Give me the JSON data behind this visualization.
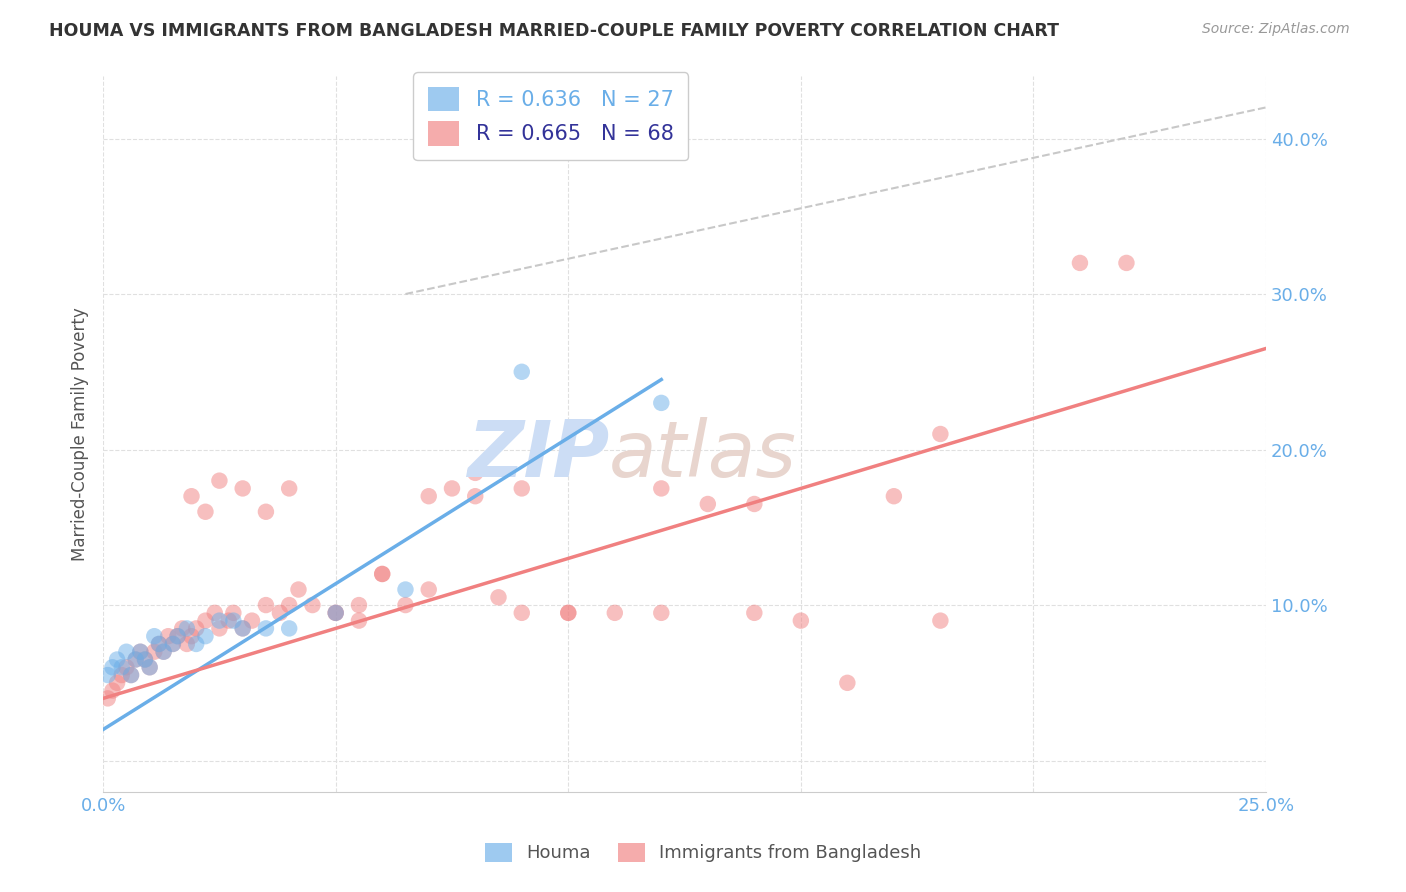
{
  "title": "HOUMA VS IMMIGRANTS FROM BANGLADESH MARRIED-COUPLE FAMILY POVERTY CORRELATION CHART",
  "source": "Source: ZipAtlas.com",
  "ylabel": "Married-Couple Family Poverty",
  "xlim": [
    0.0,
    0.25
  ],
  "ylim": [
    -0.02,
    0.44
  ],
  "blue_color": "#6aaee8",
  "pink_color": "#f08080",
  "legend_r1": "R = 0.636",
  "legend_n1": "N = 27",
  "legend_r2": "R = 0.665",
  "legend_n2": "N = 68",
  "houma_x": [
    0.001,
    0.002,
    0.003,
    0.004,
    0.005,
    0.006,
    0.007,
    0.008,
    0.009,
    0.01,
    0.011,
    0.012,
    0.013,
    0.015,
    0.016,
    0.018,
    0.02,
    0.022,
    0.025,
    0.028,
    0.03,
    0.035,
    0.04,
    0.05,
    0.065,
    0.09,
    0.12
  ],
  "houma_y": [
    0.055,
    0.06,
    0.065,
    0.06,
    0.07,
    0.055,
    0.065,
    0.07,
    0.065,
    0.06,
    0.08,
    0.075,
    0.07,
    0.075,
    0.08,
    0.085,
    0.075,
    0.08,
    0.09,
    0.09,
    0.085,
    0.085,
    0.085,
    0.095,
    0.11,
    0.25,
    0.23
  ],
  "bangladesh_x": [
    0.001,
    0.002,
    0.003,
    0.004,
    0.005,
    0.006,
    0.007,
    0.008,
    0.009,
    0.01,
    0.011,
    0.012,
    0.013,
    0.014,
    0.015,
    0.016,
    0.017,
    0.018,
    0.019,
    0.02,
    0.022,
    0.024,
    0.025,
    0.027,
    0.028,
    0.03,
    0.032,
    0.035,
    0.038,
    0.04,
    0.042,
    0.045,
    0.05,
    0.055,
    0.06,
    0.065,
    0.07,
    0.075,
    0.08,
    0.085,
    0.09,
    0.1,
    0.11,
    0.12,
    0.13,
    0.14,
    0.15,
    0.16,
    0.17,
    0.18,
    0.019,
    0.022,
    0.025,
    0.03,
    0.035,
    0.04,
    0.05,
    0.055,
    0.06,
    0.07,
    0.08,
    0.09,
    0.1,
    0.12,
    0.14,
    0.18,
    0.21,
    0.22
  ],
  "bangladesh_y": [
    0.04,
    0.045,
    0.05,
    0.055,
    0.06,
    0.055,
    0.065,
    0.07,
    0.065,
    0.06,
    0.07,
    0.075,
    0.07,
    0.08,
    0.075,
    0.08,
    0.085,
    0.075,
    0.08,
    0.085,
    0.09,
    0.095,
    0.085,
    0.09,
    0.095,
    0.085,
    0.09,
    0.1,
    0.095,
    0.1,
    0.11,
    0.1,
    0.095,
    0.1,
    0.12,
    0.1,
    0.11,
    0.175,
    0.17,
    0.105,
    0.095,
    0.095,
    0.095,
    0.095,
    0.165,
    0.095,
    0.09,
    0.05,
    0.17,
    0.21,
    0.17,
    0.16,
    0.18,
    0.175,
    0.16,
    0.175,
    0.095,
    0.09,
    0.12,
    0.17,
    0.185,
    0.175,
    0.095,
    0.175,
    0.165,
    0.09,
    0.32,
    0.32
  ],
  "blue_line_x0": 0.0,
  "blue_line_y0": 0.02,
  "blue_line_x1": 0.12,
  "blue_line_y1": 0.245,
  "pink_line_x0": 0.0,
  "pink_line_y0": 0.04,
  "pink_line_x1": 0.25,
  "pink_line_y1": 0.265,
  "dash_line_x0": 0.065,
  "dash_line_y0": 0.3,
  "dash_line_x1": 0.25,
  "dash_line_y1": 0.42
}
